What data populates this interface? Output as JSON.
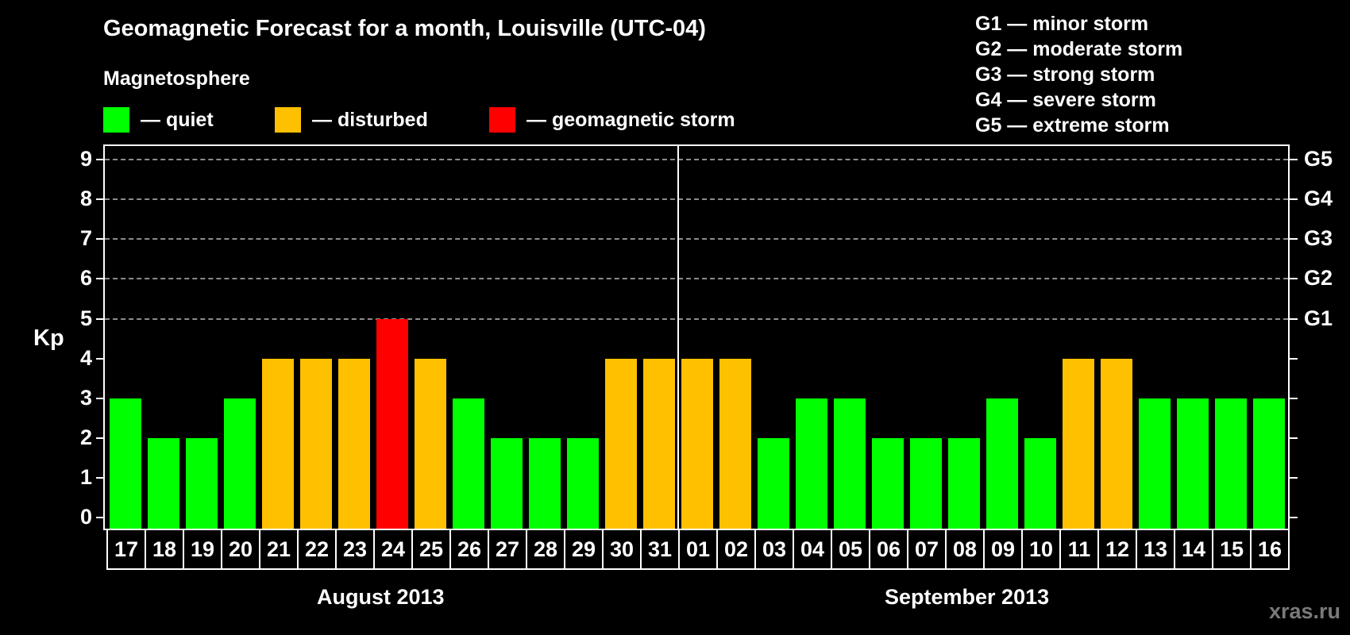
{
  "header": {
    "title": "Geomagnetic Forecast for a month, Louisville (UTC-04)",
    "subtitle": "Magnetosphere"
  },
  "legend": {
    "items": [
      {
        "label": "— quiet",
        "color": "#00ff00"
      },
      {
        "label": "— disturbed",
        "color": "#ffc000"
      },
      {
        "label": "— geomagnetic storm",
        "color": "#ff0000"
      }
    ]
  },
  "storm_scale": {
    "items": [
      "G1 — minor storm",
      "G2 — moderate storm",
      "G3 — strong storm",
      "G4 — severe storm",
      "G5 — extreme storm"
    ]
  },
  "axes": {
    "y_label": "Kp",
    "y_ticks": [
      "0",
      "1",
      "2",
      "3",
      "4",
      "5",
      "6",
      "7",
      "8",
      "9"
    ],
    "g_ticks": [
      {
        "kp": 5,
        "label": "G1"
      },
      {
        "kp": 6,
        "label": "G2"
      },
      {
        "kp": 7,
        "label": "G3"
      },
      {
        "kp": 8,
        "label": "G4"
      },
      {
        "kp": 9,
        "label": "G5"
      }
    ],
    "months": [
      "August 2013",
      "September 2013"
    ]
  },
  "watermark": "xras.ru",
  "chart_data": {
    "type": "bar",
    "title": "Geomagnetic Forecast for a month, Louisville (UTC-04)",
    "subtitle": "Magnetosphere",
    "xlabel": "August 2013 / September 2013",
    "ylabel": "Kp",
    "ylim": [
      0,
      9
    ],
    "grid": "horizontal dashed at Kp 5-9",
    "legend_position": "top",
    "categories": [
      "17",
      "18",
      "19",
      "20",
      "21",
      "22",
      "23",
      "24",
      "25",
      "26",
      "27",
      "28",
      "29",
      "30",
      "31",
      "01",
      "02",
      "03",
      "04",
      "05",
      "06",
      "07",
      "08",
      "09",
      "10",
      "11",
      "12",
      "13",
      "14",
      "15",
      "16"
    ],
    "values": [
      3,
      2,
      2,
      3,
      4,
      4,
      4,
      5,
      4,
      3,
      2,
      2,
      2,
      4,
      4,
      4,
      4,
      2,
      3,
      3,
      2,
      2,
      2,
      3,
      2,
      4,
      4,
      3,
      3,
      3,
      3
    ],
    "status": [
      "quiet",
      "quiet",
      "quiet",
      "quiet",
      "disturbed",
      "disturbed",
      "disturbed",
      "storm",
      "disturbed",
      "quiet",
      "quiet",
      "quiet",
      "quiet",
      "disturbed",
      "disturbed",
      "disturbed",
      "disturbed",
      "quiet",
      "quiet",
      "quiet",
      "quiet",
      "quiet",
      "quiet",
      "quiet",
      "quiet",
      "disturbed",
      "disturbed",
      "quiet",
      "quiet",
      "quiet",
      "quiet"
    ],
    "colors": {
      "quiet": "#00ff00",
      "disturbed": "#ffc000",
      "storm": "#ff0000"
    },
    "secondary_axis": {
      "G1": 5,
      "G2": 6,
      "G3": 7,
      "G4": 8,
      "G5": 9
    },
    "month_split_after_index": 14
  }
}
